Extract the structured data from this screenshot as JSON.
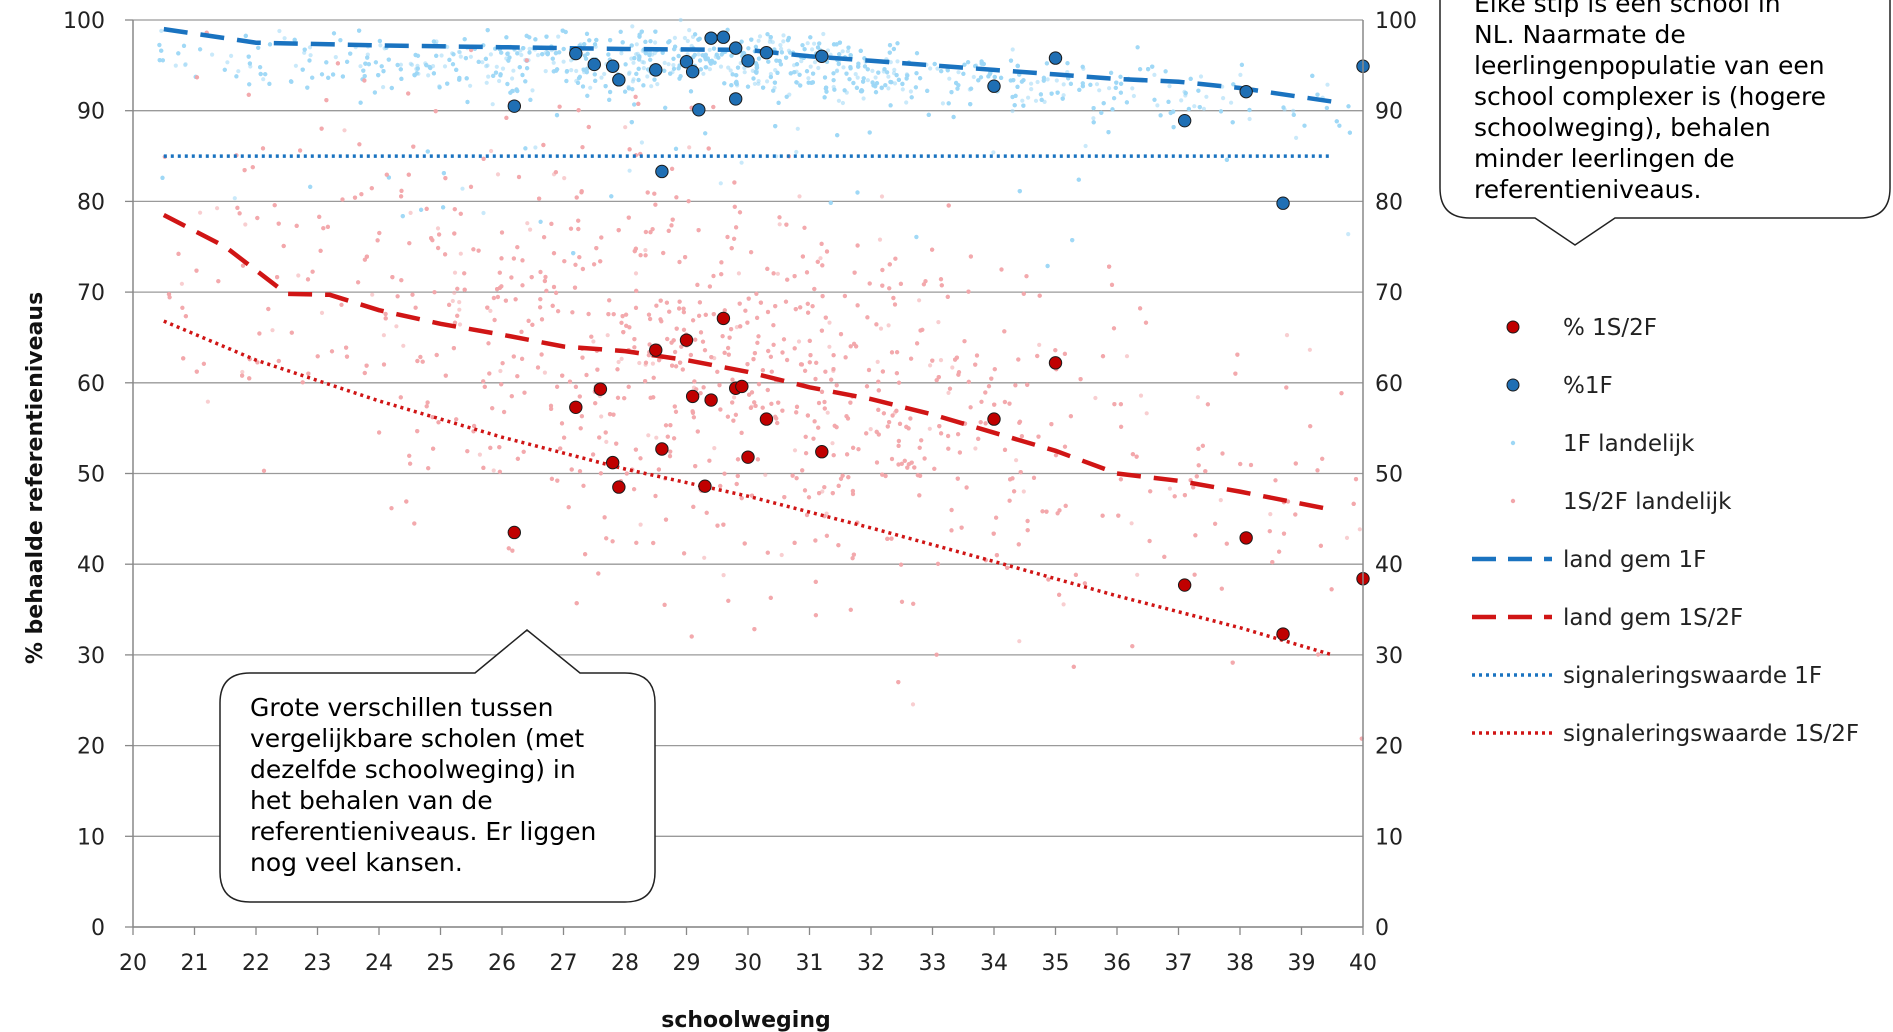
{
  "chart_data": {
    "type": "scatter",
    "title": "",
    "xlabel": "schoolweging",
    "ylabel": "% behaalde referentieniveaus",
    "xlim": [
      20,
      40
    ],
    "ylim": [
      0,
      100
    ],
    "x_ticks": [
      "20",
      "21",
      "22",
      "23",
      "24",
      "25",
      "26",
      "27",
      "28",
      "29",
      "30",
      "31",
      "32",
      "33",
      "34",
      "35",
      "36",
      "37",
      "38",
      "39",
      "40"
    ],
    "y_ticks": [
      "0",
      "10",
      "20",
      "30",
      "40",
      "50",
      "60",
      "70",
      "80",
      "90",
      "100"
    ],
    "grid": "horizontal",
    "legend_position": "right",
    "colors": {
      "school_1F": "#1f6fb4",
      "school_1S2F": "#c00000",
      "land_1F_dots": "#9dd7f5",
      "land_1S2F_dots": "#f2a5aa",
      "gem_1F": "#1a73c0",
      "gem_1S2F": "#d01515",
      "signal_1F": "#1a73c0",
      "signal_1S2F": "#d01515"
    },
    "series": [
      {
        "name": "% 1S/2F",
        "type": "scatter",
        "points": [
          [
            26.2,
            43.5
          ],
          [
            27.2,
            57.3
          ],
          [
            27.6,
            59.3
          ],
          [
            27.8,
            51.2
          ],
          [
            27.9,
            48.5
          ],
          [
            28.5,
            63.6
          ],
          [
            28.6,
            52.7
          ],
          [
            29.0,
            64.7
          ],
          [
            29.1,
            58.5
          ],
          [
            29.3,
            48.6
          ],
          [
            29.4,
            58.1
          ],
          [
            29.6,
            67.1
          ],
          [
            29.8,
            59.4
          ],
          [
            29.9,
            59.6
          ],
          [
            30.0,
            51.8
          ],
          [
            30.3,
            56.0
          ],
          [
            31.2,
            52.4
          ],
          [
            34.0,
            56.0
          ],
          [
            35.0,
            62.2
          ],
          [
            37.1,
            37.7
          ],
          [
            38.1,
            42.9
          ],
          [
            38.7,
            32.3
          ],
          [
            40.0,
            38.4
          ]
        ]
      },
      {
        "name": "%1F",
        "type": "scatter",
        "points": [
          [
            26.2,
            90.5
          ],
          [
            27.2,
            96.3
          ],
          [
            27.5,
            95.1
          ],
          [
            27.8,
            94.9
          ],
          [
            27.9,
            93.4
          ],
          [
            28.5,
            94.5
          ],
          [
            28.6,
            83.3
          ],
          [
            29.0,
            95.4
          ],
          [
            29.1,
            94.3
          ],
          [
            29.2,
            90.1
          ],
          [
            29.4,
            98.0
          ],
          [
            29.6,
            98.1
          ],
          [
            29.8,
            96.9
          ],
          [
            29.8,
            91.3
          ],
          [
            30.0,
            95.5
          ],
          [
            30.3,
            96.4
          ],
          [
            31.2,
            96.0
          ],
          [
            34.0,
            92.7
          ],
          [
            35.0,
            95.8
          ],
          [
            37.1,
            88.9
          ],
          [
            38.1,
            92.1
          ],
          [
            38.7,
            79.8
          ],
          [
            40.0,
            94.9
          ]
        ]
      },
      {
        "name": "1F landelijk",
        "type": "scatter",
        "note_points": "dense national cloud"
      },
      {
        "name": "1S/2F landelijk",
        "type": "scatter",
        "note_points": "dense national cloud"
      },
      {
        "name": "land gem 1F",
        "type": "line",
        "style": "dashed",
        "points": [
          [
            20.5,
            99.0
          ],
          [
            22,
            97.5
          ],
          [
            24,
            97.2
          ],
          [
            26,
            97.0
          ],
          [
            28,
            96.8
          ],
          [
            30,
            96.7
          ],
          [
            31,
            96.0
          ],
          [
            32,
            95.5
          ],
          [
            34,
            94.5
          ],
          [
            35,
            94.0
          ],
          [
            36,
            93.5
          ],
          [
            37,
            93.2
          ],
          [
            38,
            92.5
          ],
          [
            39.5,
            91.0
          ]
        ]
      },
      {
        "name": "land gem 1S/2F",
        "type": "line",
        "style": "dashed",
        "points": [
          [
            20.5,
            78.5
          ],
          [
            21.5,
            75.0
          ],
          [
            22.5,
            69.8
          ],
          [
            23.2,
            69.7
          ],
          [
            24.0,
            68.0
          ],
          [
            25.0,
            66.5
          ],
          [
            26.0,
            65.3
          ],
          [
            27.0,
            64.0
          ],
          [
            28.0,
            63.5
          ],
          [
            29.0,
            62.5
          ],
          [
            30.0,
            61.2
          ],
          [
            31.0,
            59.5
          ],
          [
            32.0,
            58.2
          ],
          [
            33.0,
            56.5
          ],
          [
            34.0,
            54.5
          ],
          [
            35.0,
            52.5
          ],
          [
            36.0,
            50.0
          ],
          [
            37.0,
            49.2
          ],
          [
            38.0,
            48.0
          ],
          [
            39.5,
            46.0
          ]
        ]
      },
      {
        "name": "signaleringswaarde 1F",
        "type": "line",
        "style": "dotted",
        "points": [
          [
            20.5,
            85
          ],
          [
            39.5,
            85
          ]
        ]
      },
      {
        "name": "signaleringswaarde 1S/2F",
        "type": "line",
        "style": "dotted",
        "points": [
          [
            20.5,
            66.8
          ],
          [
            22,
            62.5
          ],
          [
            24,
            58.0
          ],
          [
            26,
            54.0
          ],
          [
            28,
            50.5
          ],
          [
            30,
            47.5
          ],
          [
            32,
            44.0
          ],
          [
            34,
            40.3
          ],
          [
            36,
            36.5
          ],
          [
            38,
            33.0
          ],
          [
            39.5,
            30.0
          ]
        ]
      }
    ],
    "annotations": [
      {
        "name": "callout-top",
        "text": "Elke stip is een school in NL. Naarmate de leerlingenpopulatie van een school complexer is (hogere schoolweging), behalen minder leerlingen de referentieniveaus."
      },
      {
        "name": "callout-bottom",
        "text": "Grote verschillen tussen vergelijkbare scholen (met dezelfde schoolweging) in het behalen van de referentieniveaus. Er liggen nog veel kansen."
      }
    ]
  },
  "callouts": {
    "top": "Elke stip is een school in\nNL. Naarmate de\nleerlingenpopulatie van een\nschool complexer is (hogere\nschoolweging), behalen\nminder leerlingen de\nreferentieniveaus.",
    "bottom": "Grote verschillen tussen\nvergelijkbare scholen (met\ndezelfde schoolweging) in\nhet behalen van de\nreferentieniveaus. Er liggen\nnog veel kansen."
  }
}
